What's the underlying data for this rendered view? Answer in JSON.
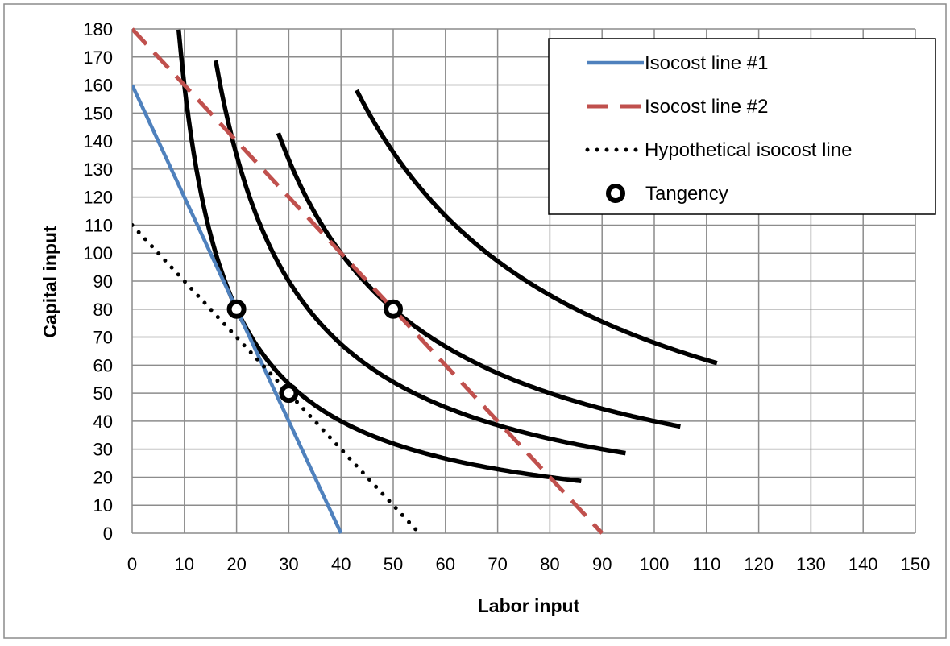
{
  "chart_data": {
    "type": "line",
    "title": "",
    "xlabel": "Labor input",
    "ylabel": "Capital input",
    "xlim": [
      0,
      150
    ],
    "ylim": [
      0,
      180
    ],
    "x_ticks": [
      0,
      10,
      20,
      30,
      40,
      50,
      60,
      70,
      80,
      90,
      100,
      110,
      120,
      130,
      140,
      150
    ],
    "y_ticks": [
      0,
      10,
      20,
      30,
      40,
      50,
      60,
      70,
      80,
      90,
      100,
      110,
      120,
      130,
      140,
      150,
      160,
      170,
      180
    ],
    "grid": true,
    "legend_position": "top-right",
    "series": [
      {
        "name": "Isocost line #1",
        "style": "solid",
        "color": "#4f81bd",
        "x": [
          0,
          40
        ],
        "y": [
          160,
          0
        ]
      },
      {
        "name": "Isocost line #2",
        "style": "dashed",
        "color": "#c0504d",
        "x": [
          0,
          90
        ],
        "y": [
          180,
          0
        ]
      },
      {
        "name": "Hypothetical isocost line",
        "style": "dotted",
        "color": "#000000",
        "x": [
          0,
          55
        ],
        "y": [
          110,
          0
        ]
      },
      {
        "name": "Tangency",
        "style": "marker",
        "color": "#000000",
        "x": [
          20,
          30,
          50
        ],
        "y": [
          80,
          50,
          80
        ]
      }
    ],
    "isoquants": [
      {
        "k": 1600,
        "x_from": 8.9,
        "x_to": 86,
        "color": "#000000"
      },
      {
        "k": 2700,
        "x_from": 16,
        "x_to": 94.5,
        "color": "#000000"
      },
      {
        "k": 4000,
        "x_from": 28,
        "x_to": 105,
        "color": "#000000"
      },
      {
        "k": 6800,
        "x_from": 43,
        "x_to": 112,
        "color": "#000000"
      }
    ]
  }
}
